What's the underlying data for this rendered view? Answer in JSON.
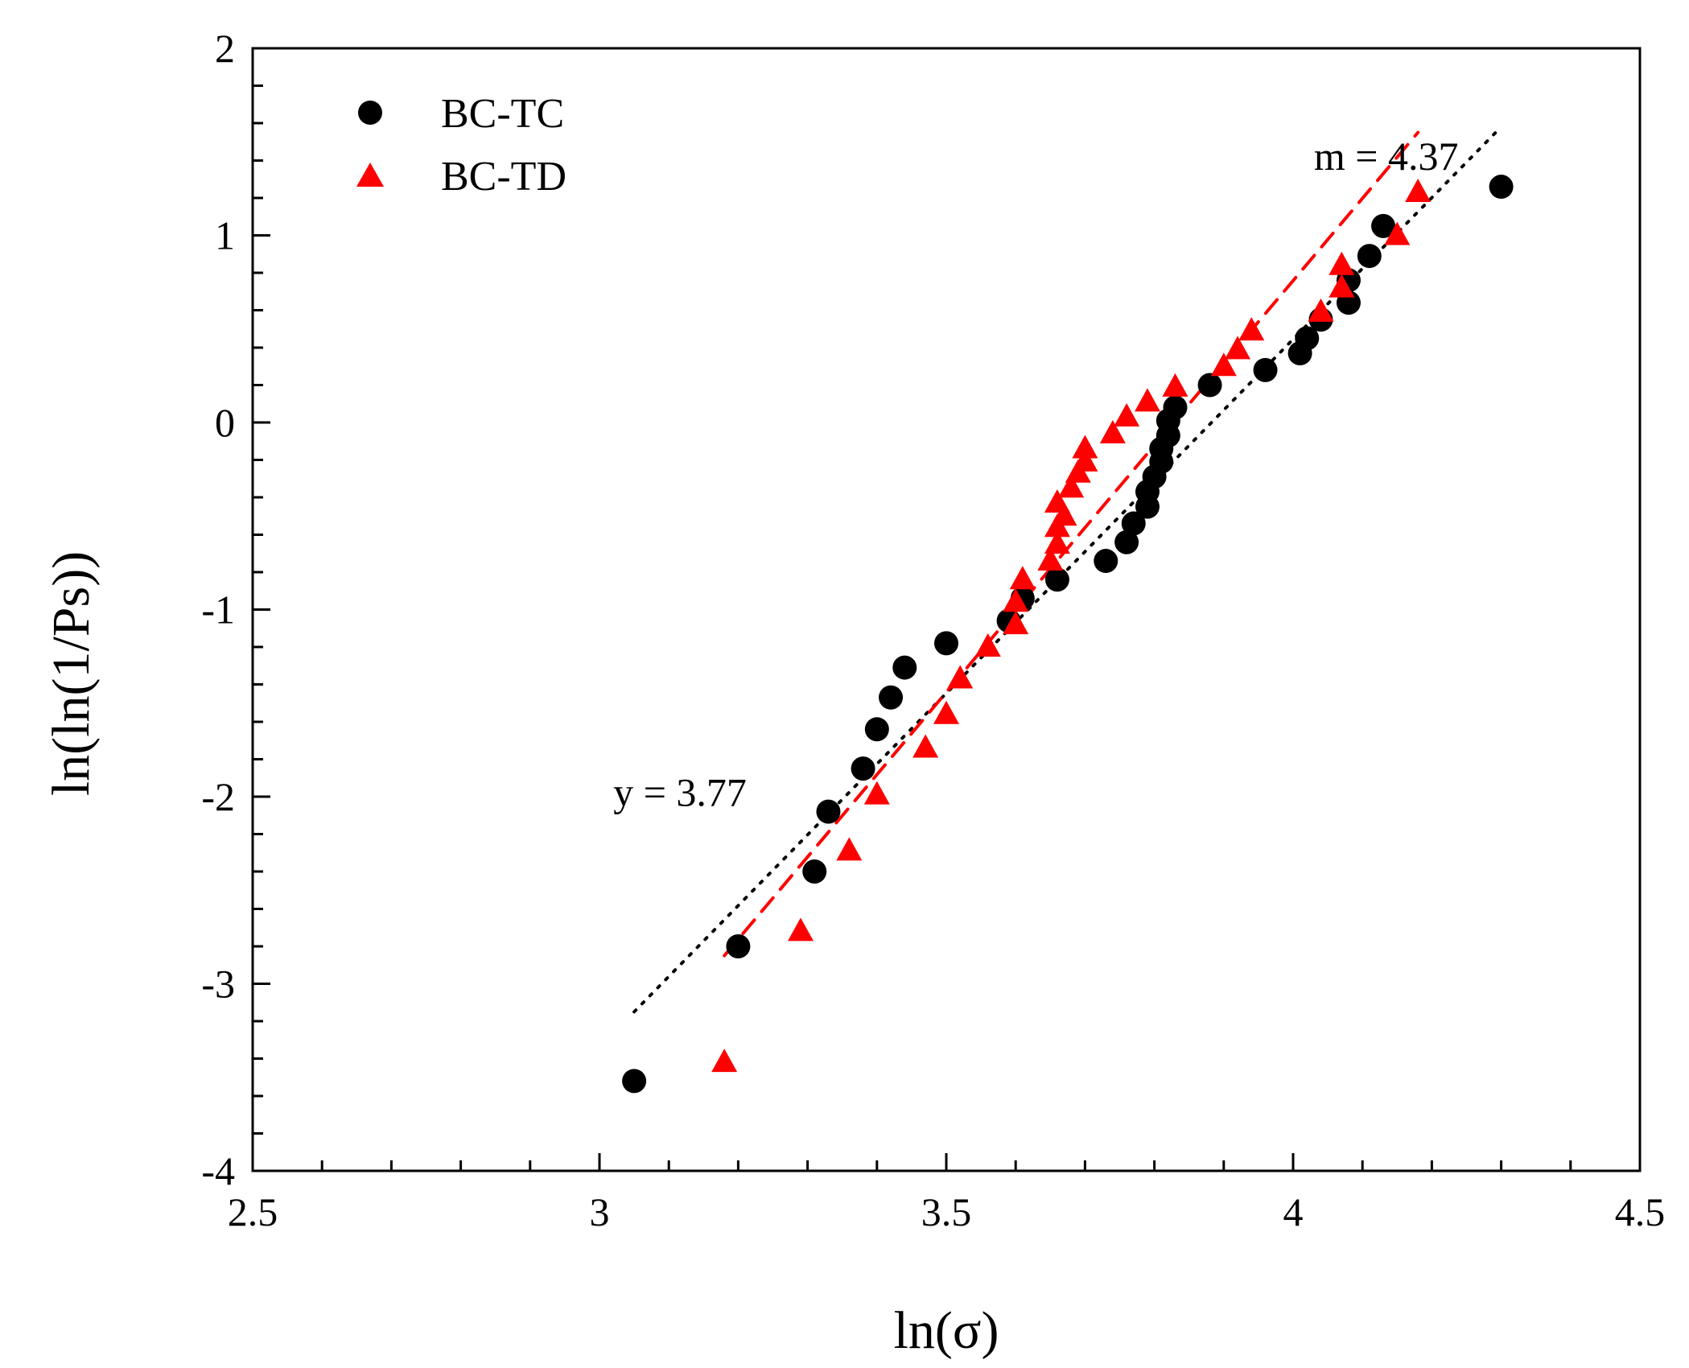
{
  "chart_data": {
    "type": "scatter",
    "title": "",
    "xlabel": "ln(σ)",
    "ylabel": "ln(ln(1/Ps))",
    "xlim": [
      2.5,
      4.5
    ],
    "ylim": [
      -4,
      2
    ],
    "x_ticks": [
      2.5,
      3,
      3.5,
      4,
      4.5
    ],
    "x_tick_labels": [
      "2.5",
      "3",
      "3.5",
      "4",
      "4.5"
    ],
    "y_ticks": [
      -4,
      -3,
      -2,
      -1,
      0,
      1,
      2
    ],
    "y_tick_labels": [
      "-4",
      "-3",
      "-2",
      "-1",
      "0",
      "1",
      "2"
    ],
    "x_minor_step": 0.1,
    "y_minor_step": 0.2,
    "grid": false,
    "legend_position": "top-left",
    "series": [
      {
        "name": "BC-TC",
        "marker": "circle",
        "color": "#000000",
        "points": [
          [
            3.05,
            -3.52
          ],
          [
            3.2,
            -2.8
          ],
          [
            3.31,
            -2.4
          ],
          [
            3.33,
            -2.08
          ],
          [
            3.38,
            -1.85
          ],
          [
            3.4,
            -1.64
          ],
          [
            3.42,
            -1.47
          ],
          [
            3.44,
            -1.31
          ],
          [
            3.5,
            -1.18
          ],
          [
            3.59,
            -1.06
          ],
          [
            3.61,
            -0.94
          ],
          [
            3.66,
            -0.84
          ],
          [
            3.73,
            -0.74
          ],
          [
            3.76,
            -0.64
          ],
          [
            3.77,
            -0.54
          ],
          [
            3.79,
            -0.45
          ],
          [
            3.79,
            -0.37
          ],
          [
            3.8,
            -0.29
          ],
          [
            3.81,
            -0.21
          ],
          [
            3.81,
            -0.14
          ],
          [
            3.82,
            -0.07
          ],
          [
            3.82,
            0.01
          ],
          [
            3.83,
            0.08
          ],
          [
            3.88,
            0.2
          ],
          [
            3.96,
            0.28
          ],
          [
            4.01,
            0.37
          ],
          [
            4.02,
            0.45
          ],
          [
            4.04,
            0.55
          ],
          [
            4.08,
            0.64
          ],
          [
            4.08,
            0.76
          ],
          [
            4.11,
            0.89
          ],
          [
            4.13,
            1.05
          ],
          [
            4.3,
            1.26
          ]
        ]
      },
      {
        "name": "BC-TD",
        "marker": "triangle",
        "color": "#ff0000",
        "points": [
          [
            3.18,
            -3.42
          ],
          [
            3.29,
            -2.72
          ],
          [
            3.36,
            -2.29
          ],
          [
            3.4,
            -1.99
          ],
          [
            3.47,
            -1.74
          ],
          [
            3.5,
            -1.56
          ],
          [
            3.52,
            -1.37
          ],
          [
            3.56,
            -1.2
          ],
          [
            3.6,
            -1.08
          ],
          [
            3.6,
            -0.96
          ],
          [
            3.61,
            -0.84
          ],
          [
            3.65,
            -0.74
          ],
          [
            3.66,
            -0.65
          ],
          [
            3.66,
            -0.56
          ],
          [
            3.67,
            -0.5
          ],
          [
            3.66,
            -0.43
          ],
          [
            3.68,
            -0.35
          ],
          [
            3.69,
            -0.27
          ],
          [
            3.7,
            -0.21
          ],
          [
            3.7,
            -0.14
          ],
          [
            3.74,
            -0.06
          ],
          [
            3.76,
            0.03
          ],
          [
            3.79,
            0.11
          ],
          [
            3.83,
            0.19
          ],
          [
            3.9,
            0.3
          ],
          [
            3.92,
            0.39
          ],
          [
            3.94,
            0.49
          ],
          [
            4.04,
            0.59
          ],
          [
            4.07,
            0.72
          ],
          [
            4.07,
            0.84
          ],
          [
            4.15,
            1.0
          ],
          [
            4.18,
            1.23
          ]
        ]
      }
    ],
    "trendlines": [
      {
        "name": "BC-TC fit",
        "style": "dotted",
        "color": "#000000",
        "from": [
          3.05,
          -3.15
        ],
        "to": [
          4.3,
          1.58
        ]
      },
      {
        "name": "BC-TD fit",
        "style": "dashed",
        "color": "#ff0000",
        "from": [
          3.18,
          -2.85
        ],
        "to": [
          4.18,
          1.55
        ]
      }
    ],
    "annotations": [
      {
        "text": "m = 4.37",
        "x": 4.03,
        "y": 1.35
      },
      {
        "text": "y = 3.77",
        "x": 3.02,
        "y": -2.05
      }
    ]
  }
}
